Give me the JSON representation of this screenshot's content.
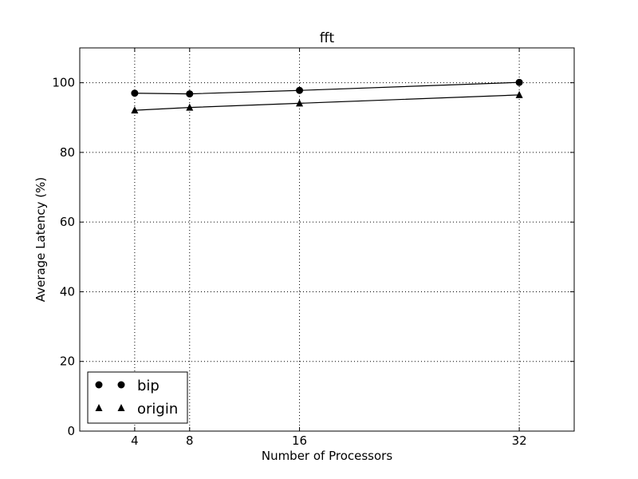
{
  "chart_data": {
    "type": "line",
    "title": "fft",
    "xlabel": "Number of Processors",
    "ylabel": "Average Latency (%)",
    "x": [
      4,
      8,
      16,
      32
    ],
    "xticks": [
      "4",
      "8",
      "16",
      "32"
    ],
    "xlim": [
      0,
      36
    ],
    "ylim": [
      0,
      110
    ],
    "yticks": [
      "0",
      "20",
      "40",
      "60",
      "80",
      "100"
    ],
    "grid": true,
    "legend_position": "lower-left",
    "series": [
      {
        "name": "bip",
        "marker": "circle",
        "values": [
          97.0,
          96.8,
          97.8,
          100.1
        ]
      },
      {
        "name": "origin",
        "marker": "triangle",
        "values": [
          92.1,
          92.9,
          94.1,
          96.5
        ]
      }
    ]
  },
  "colors": {
    "line": "#000000",
    "grid": "#000000",
    "background": "#ffffff"
  }
}
